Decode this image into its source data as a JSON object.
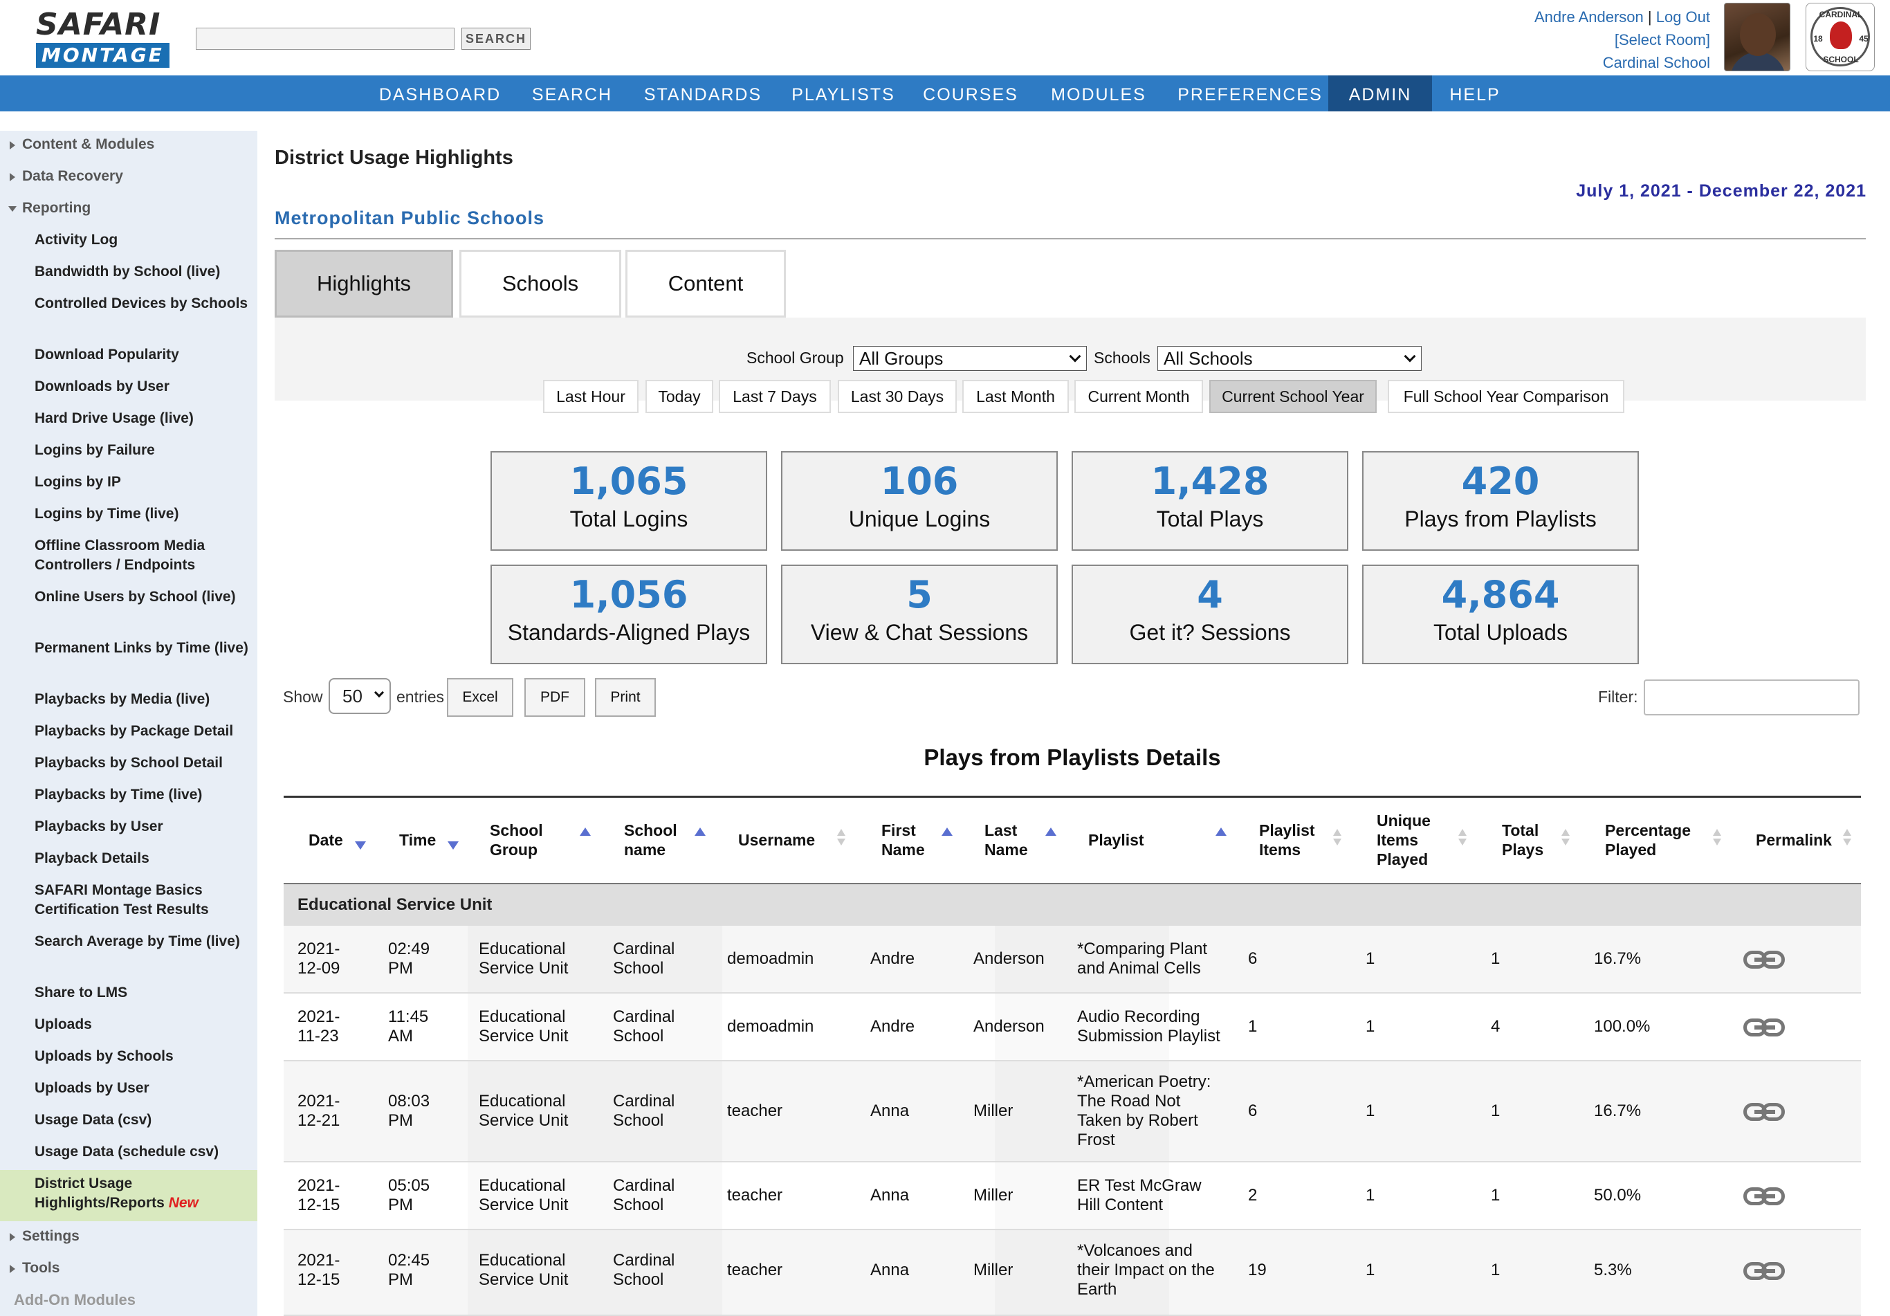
{
  "header": {
    "logo_line1": "SAFARI",
    "logo_line2": "MONTAGE",
    "search_button": "SEARCH",
    "search_value": "",
    "user_name": "Andre Anderson",
    "separator": "|",
    "logout": "Log Out",
    "select_room": "[Select Room]",
    "school": "Cardinal School",
    "seal_top": "CARDINAL",
    "seal_year_left": "18",
    "seal_year_right": "45",
    "seal_bottom": "SCHOOL"
  },
  "nav": [
    "DASHBOARD",
    "SEARCH",
    "STANDARDS",
    "PLAYLISTS",
    "COURSES",
    "MODULES",
    "PREFERENCES",
    "ADMIN",
    "HELP"
  ],
  "nav_active": "ADMIN",
  "sidebar": {
    "sections": {
      "content_modules": "Content & Modules",
      "data_recovery": "Data Recovery",
      "reporting": "Reporting",
      "settings": "Settings",
      "tools": "Tools",
      "addon": "Add-On Modules"
    },
    "reporting_items": [
      "Activity Log",
      "Bandwidth by School (live)",
      "Controlled Devices by Schools",
      "Download Popularity",
      "Downloads by User",
      "Hard Drive Usage (live)",
      "Logins by Failure",
      "Logins by IP",
      "Logins by Time (live)",
      "Offline Classroom Media Controllers / Endpoints",
      "Online Users by School (live)",
      "Permanent Links by Time (live)",
      "Playbacks by Media (live)",
      "Playbacks by Package Detail",
      "Playbacks by School Detail",
      "Playbacks by Time (live)",
      "Playbacks by User",
      "Playback Details",
      "SAFARI Montage Basics Certification Test Results",
      "Search Average by Time (live)",
      "Share to LMS",
      "Uploads",
      "Uploads by Schools",
      "Uploads by User",
      "Usage Data (csv)",
      "Usage Data (schedule csv)"
    ],
    "active_item": "District Usage Highlights/Reports",
    "active_badge": "New"
  },
  "page": {
    "title": "District Usage Highlights",
    "date_range": "July 1, 2021 - December 22, 2021",
    "district": "Metropolitan Public Schools"
  },
  "tabs": [
    "Highlights",
    "Schools",
    "Content"
  ],
  "filters": {
    "school_group_label": "School Group",
    "school_group_value": "All Groups",
    "schools_label": "Schools",
    "schools_value": "All Schools",
    "ranges": [
      "Last Hour",
      "Today",
      "Last 7 Days",
      "Last 30 Days",
      "Last Month",
      "Current Month",
      "Current School Year",
      "Full School Year Comparison"
    ],
    "active_range": "Current School Year"
  },
  "stats": [
    {
      "value": "1,065",
      "label": "Total Logins"
    },
    {
      "value": "106",
      "label": "Unique Logins"
    },
    {
      "value": "1,428",
      "label": "Total Plays"
    },
    {
      "value": "420",
      "label": "Plays from Playlists"
    },
    {
      "value": "1,056",
      "label": "Standards-Aligned Plays"
    },
    {
      "value": "5",
      "label": "View & Chat Sessions"
    },
    {
      "value": "4",
      "label": "Get it? Sessions"
    },
    {
      "value": "4,864",
      "label": "Total Uploads"
    }
  ],
  "table_controls": {
    "show": "Show",
    "entries_value": "50",
    "entries": "entries",
    "excel": "Excel",
    "pdf": "PDF",
    "print": "Print",
    "filter_label": "Filter:",
    "filter_value": ""
  },
  "table": {
    "title": "Plays from Playlists Details",
    "headers": [
      "Date",
      "Time",
      "School Group",
      "School name",
      "Username",
      "First Name",
      "Last Name",
      "Playlist",
      "Playlist Items",
      "Unique Items Played",
      "Total Plays",
      "Percentage Played",
      "Permalink"
    ],
    "group": "Educational Service Unit",
    "rows": [
      [
        "2021-12-09",
        "02:49 PM",
        "Educational Service Unit",
        "Cardinal School",
        "demoadmin",
        "Andre",
        "Anderson",
        "*Comparing Plant and Animal Cells",
        "6",
        "1",
        "1",
        "16.7%"
      ],
      [
        "2021-11-23",
        "11:45 AM",
        "Educational Service Unit",
        "Cardinal School",
        "demoadmin",
        "Andre",
        "Anderson",
        "Audio Recording Submission Playlist",
        "1",
        "1",
        "4",
        "100.0%"
      ],
      [
        "2021-12-21",
        "08:03 PM",
        "Educational Service Unit",
        "Cardinal School",
        "teacher",
        "Anna",
        "Miller",
        "*American Poetry: The Road Not Taken by Robert Frost",
        "6",
        "1",
        "1",
        "16.7%"
      ],
      [
        "2021-12-15",
        "05:05 PM",
        "Educational Service Unit",
        "Cardinal School",
        "teacher",
        "Anna",
        "Miller",
        "ER Test McGraw Hill Content",
        "2",
        "1",
        "1",
        "50.0%"
      ],
      [
        "2021-12-15",
        "02:45 PM",
        "Educational Service Unit",
        "Cardinal School",
        "teacher",
        "Anna",
        "Miller",
        "*Volcanoes and their Impact on the Earth",
        "19",
        "1",
        "1",
        "5.3%"
      ]
    ]
  }
}
